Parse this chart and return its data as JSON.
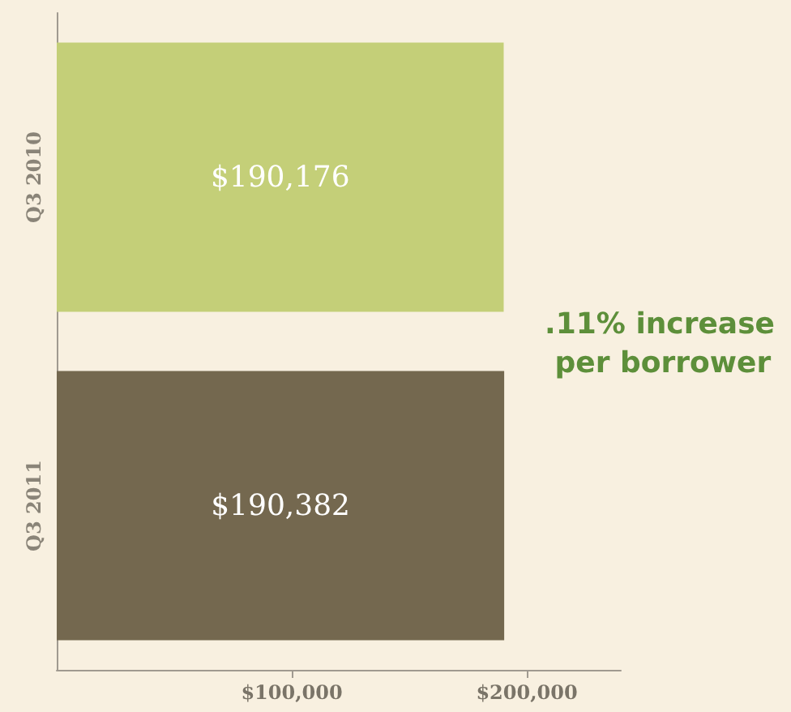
{
  "chart_data": {
    "type": "bar",
    "orientation": "horizontal",
    "categories": [
      "Q3 2010",
      "Q3 2011"
    ],
    "values": [
      190176,
      190382
    ],
    "colors": [
      "#c4cf78",
      "#74684f"
    ],
    "value_labels": [
      "$190,176",
      "$190,382"
    ],
    "xlim": [
      0,
      240000
    ],
    "xticks": [
      {
        "value": 100000,
        "label": "$100,000"
      },
      {
        "value": 200000,
        "label": "$200,000"
      }
    ],
    "annotations": [
      ".11% increase per borrower"
    ]
  }
}
